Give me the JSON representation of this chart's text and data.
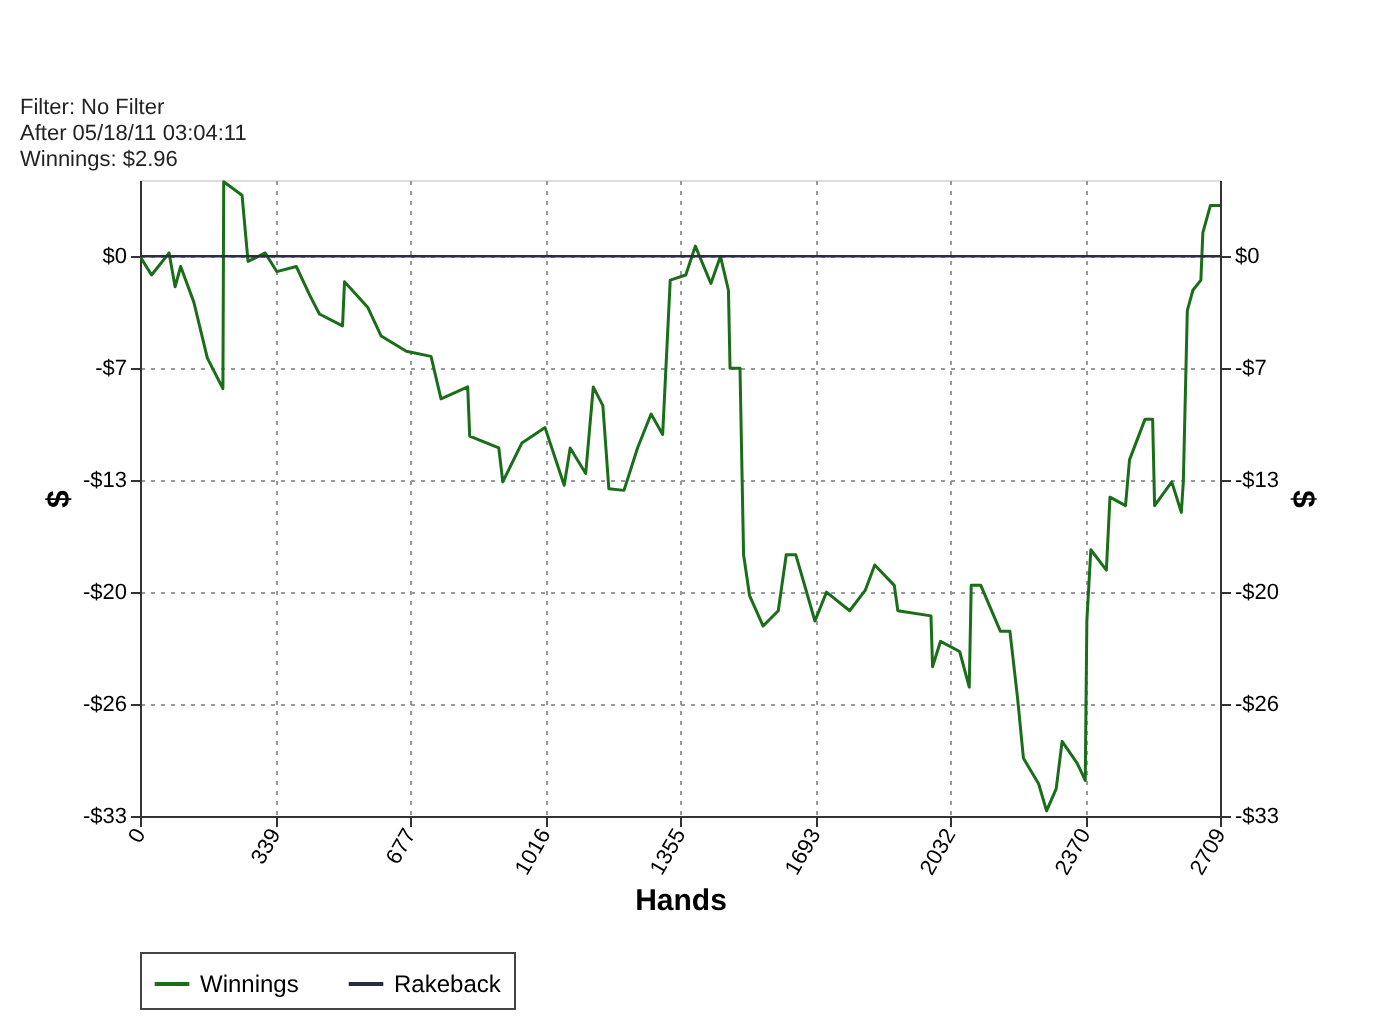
{
  "chart_data": {
    "type": "line",
    "xlabel": "Hands",
    "ylabel": "$",
    "y2label": "$",
    "annotations": [
      "Filter: No Filter",
      "After 05/18/11 03:04:11",
      "Winnings: $2.96"
    ],
    "series": [
      {
        "name": "Winnings",
        "color": "#1a6e1a",
        "x": [
          0,
          29,
          73,
          88,
          102,
          135,
          169,
          208,
          210,
          256,
          271,
          314,
          343,
          392,
          426,
          450,
          508,
          513,
          571,
          605,
          668,
          730,
          755,
          822,
          827,
          900,
          910,
          958,
          1016,
          1064,
          1079,
          1118,
          1137,
          1161,
          1176,
          1214,
          1248,
          1282,
          1311,
          1330,
          1369,
          1393,
          1432,
          1456,
          1476,
          1480,
          1505,
          1514,
          1529,
          1563,
          1601,
          1621,
          1645,
          1693,
          1722,
          1780,
          1819,
          1843,
          1892,
          1901,
          1984,
          1988,
          2008,
          2056,
          2080,
          2085,
          2109,
          2158,
          2182,
          2201,
          2216,
          2254,
          2274,
          2298,
          2313,
          2351,
          2371,
          2375,
          2385,
          2424,
          2433,
          2472,
          2482,
          2521,
          2540,
          2545,
          2588,
          2612,
          2617,
          2627,
          2641,
          2661,
          2666,
          2685,
          2709
        ],
        "values": [
          0,
          -1.1,
          0.2,
          -1.8,
          -0.6,
          -2.7,
          -6.0,
          -7.8,
          4.4,
          3.6,
          -0.3,
          0.2,
          -0.9,
          -0.6,
          -2.3,
          -3.4,
          -4.1,
          -1.5,
          -3.0,
          -4.7,
          -5.6,
          -5.9,
          -8.4,
          -7.7,
          -10.6,
          -11.3,
          -13.3,
          -11.0,
          -10.1,
          -13.5,
          -11.3,
          -12.8,
          -7.7,
          -8.8,
          -13.7,
          -13.8,
          -11.3,
          -9.3,
          -10.5,
          -1.4,
          -1.1,
          0.6,
          -1.6,
          0,
          -2.0,
          -6.6,
          -6.6,
          -17.6,
          -20.0,
          -21.8,
          -20.9,
          -17.6,
          -17.6,
          -21.5,
          -19.8,
          -20.9,
          -19.7,
          -18.2,
          -19.4,
          -20.9,
          -21.2,
          -24.2,
          -22.7,
          -23.3,
          -25.4,
          -19.4,
          -19.4,
          -22.1,
          -22.1,
          -26.0,
          -29.6,
          -31.1,
          -32.7,
          -31.4,
          -28.6,
          -29.9,
          -30.9,
          -21.5,
          -17.3,
          -18.5,
          -14.2,
          -14.7,
          -12.0,
          -9.6,
          -9.6,
          -14.7,
          -13.3,
          -15.1,
          -13.3,
          -3.2,
          -2.0,
          -1.4,
          1.4,
          3.0,
          3.0
        ]
      },
      {
        "name": "Rakeback",
        "color": "#2b2b45",
        "x": [
          0,
          2709
        ],
        "values": [
          0,
          0
        ]
      }
    ],
    "xlim": [
      0,
      2709
    ],
    "xticks": [
      0,
      {
        "value": 338.625,
        "label": "339"
      },
      {
        "value": 677.25,
        "label": "677"
      },
      {
        "value": 1015.875,
        "label": "1016"
      },
      {
        "value": 1354.5,
        "label": "1355"
      },
      {
        "value": 1693.125,
        "label": "1693"
      },
      {
        "value": 2031.75,
        "label": "2032"
      },
      {
        "value": 2370.375,
        "label": "2370"
      },
      2709
    ],
    "ylim": [
      -33,
      4.5
    ],
    "yticks": [
      {
        "value": 0,
        "label": "$0"
      },
      {
        "value": -6.6,
        "label": "-$7"
      },
      {
        "value": -13.2,
        "label": "-$13"
      },
      {
        "value": -19.8,
        "label": "-$20"
      },
      {
        "value": -26.4,
        "label": "-$26"
      },
      {
        "value": -33,
        "label": "-$33"
      }
    ],
    "y2lim": [
      -33,
      4.5
    ],
    "y2ticks": [
      {
        "value": 0,
        "label": "$0"
      },
      {
        "value": -6.6,
        "label": "-$7"
      },
      {
        "value": -13.2,
        "label": "-$13"
      },
      {
        "value": -19.8,
        "label": "-$20"
      },
      {
        "value": -26.4,
        "label": "-$26"
      },
      {
        "value": -33,
        "label": "-$33"
      }
    ],
    "grid": true,
    "legend": "bottom left",
    "marker": "none",
    "line_style": "solid"
  }
}
